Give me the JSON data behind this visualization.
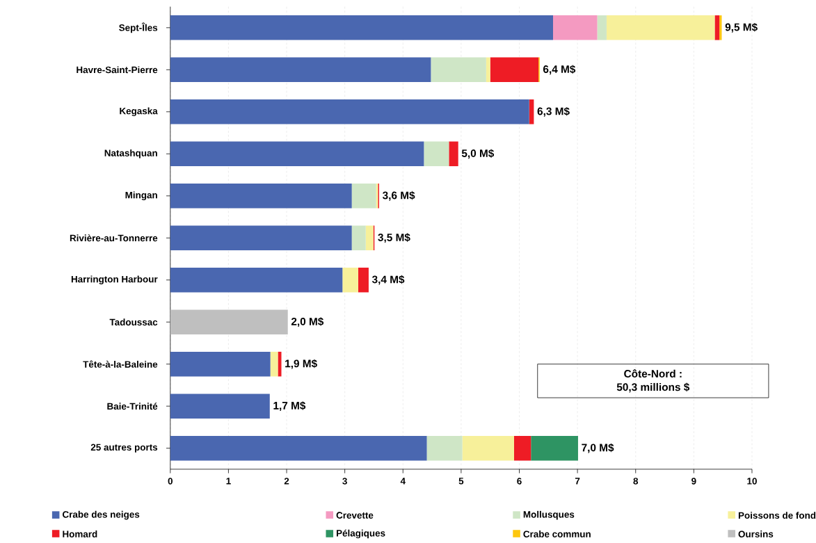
{
  "chart_data": {
    "type": "bar",
    "orientation": "horizontal",
    "stacked": true,
    "categories": [
      "Sept-Îles",
      "Havre-Saint-Pierre",
      "Kegaska",
      "Natashquan",
      "Mingan",
      "Rivière-au-Tonnerre",
      "Harrington Harbour",
      "Tadoussac",
      "Tête-à-la-Baleine",
      "Baie-Trinité",
      "25 autres ports"
    ],
    "series": [
      {
        "name": "Crabe des neiges",
        "color": "#4a67b0",
        "values": [
          6.58,
          4.48,
          6.17,
          4.36,
          3.12,
          3.12,
          2.96,
          null,
          1.72,
          1.71,
          4.41
        ]
      },
      {
        "name": "Crevette",
        "color": "#f49ac1",
        "values": [
          0.76,
          null,
          null,
          null,
          null,
          null,
          null,
          null,
          null,
          null,
          null
        ]
      },
      {
        "name": "Mollusques",
        "color": "#cfe6c6",
        "values": [
          0.16,
          0.95,
          null,
          0.43,
          0.42,
          0.24,
          null,
          null,
          null,
          null,
          0.61
        ]
      },
      {
        "name": "Poissons de fond",
        "color": "#f7f09a",
        "values": [
          1.86,
          0.07,
          null,
          null,
          0.03,
          0.13,
          0.27,
          null,
          0.13,
          null,
          0.89
        ]
      },
      {
        "name": "Homard",
        "color": "#ee1c25",
        "values": [
          0.08,
          0.83,
          0.08,
          0.16,
          0.02,
          0.02,
          0.18,
          null,
          0.06,
          null,
          0.29
        ]
      },
      {
        "name": "Pélagiques",
        "color": "#2e9463",
        "values": [
          null,
          null,
          null,
          null,
          null,
          null,
          null,
          null,
          null,
          null,
          0.81
        ]
      },
      {
        "name": "Crabe commun",
        "color": "#fdc70f",
        "values": [
          0.04,
          0.02,
          null,
          null,
          null,
          null,
          null,
          null,
          null,
          null,
          null
        ]
      },
      {
        "name": "Oursins",
        "color": "#bfbfbf",
        "values": [
          null,
          null,
          null,
          null,
          null,
          null,
          null,
          2.02,
          null,
          null,
          null
        ]
      }
    ],
    "totals": [
      "9,5 M$",
      "6,4 M$",
      "6,3 M$",
      "5,0 M$",
      "3,6 M$",
      "3,5 M$",
      "3,4 M$",
      "2,0 M$",
      "1,9 M$",
      "1,7 M$",
      "7,0 M$"
    ],
    "annotations": [
      "Côte-Nord :",
      "50,3 millions $"
    ],
    "xlim": [
      0,
      10
    ],
    "xticks": [
      0,
      1,
      2,
      3,
      4,
      5,
      6,
      7,
      8,
      9,
      10
    ],
    "grid": "x",
    "legend": "bottom"
  }
}
